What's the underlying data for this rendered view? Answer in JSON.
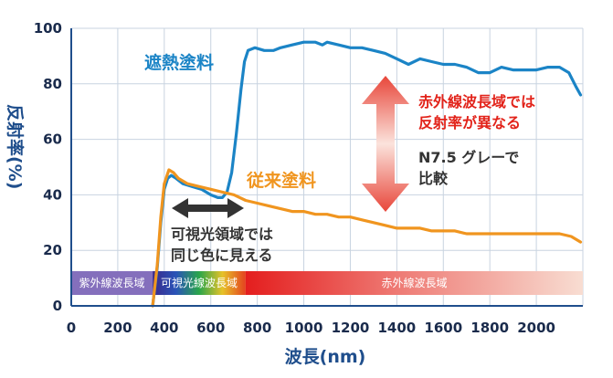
{
  "chart_data": {
    "type": "line",
    "xlabel": "波長(nm)",
    "ylabel": "反射率(%)",
    "xlim": [
      0,
      2200
    ],
    "ylim": [
      0,
      100
    ],
    "x_ticks": [
      "0",
      "200",
      "400",
      "600",
      "800",
      "1000",
      "1200",
      "1400",
      "1600",
      "1800",
      "2000"
    ],
    "y_ticks": [
      "0",
      "20",
      "40",
      "60",
      "80",
      "100"
    ],
    "grid": true,
    "colors": {
      "heat": "#1b84c6",
      "conventional": "#f0951f",
      "axis": "#1f4e8c",
      "grid": "#c8d3e0"
    },
    "series": [
      {
        "name": "遮熱塗料",
        "color": "#1b84c6",
        "points": [
          [
            350,
            0
          ],
          [
            370,
            14
          ],
          [
            385,
            30
          ],
          [
            400,
            42
          ],
          [
            415,
            46
          ],
          [
            430,
            47
          ],
          [
            450,
            46
          ],
          [
            480,
            44
          ],
          [
            520,
            43
          ],
          [
            560,
            42
          ],
          [
            600,
            40
          ],
          [
            630,
            39
          ],
          [
            650,
            39
          ],
          [
            670,
            41
          ],
          [
            690,
            48
          ],
          [
            710,
            62
          ],
          [
            730,
            78
          ],
          [
            745,
            88
          ],
          [
            760,
            92
          ],
          [
            790,
            93
          ],
          [
            830,
            92
          ],
          [
            870,
            92
          ],
          [
            900,
            93
          ],
          [
            950,
            94
          ],
          [
            1000,
            95
          ],
          [
            1050,
            95
          ],
          [
            1080,
            94
          ],
          [
            1100,
            95
          ],
          [
            1150,
            94
          ],
          [
            1200,
            93
          ],
          [
            1250,
            93
          ],
          [
            1300,
            92
          ],
          [
            1350,
            91
          ],
          [
            1400,
            89
          ],
          [
            1450,
            87
          ],
          [
            1500,
            89
          ],
          [
            1550,
            88
          ],
          [
            1600,
            87
          ],
          [
            1650,
            87
          ],
          [
            1700,
            86
          ],
          [
            1750,
            84
          ],
          [
            1800,
            84
          ],
          [
            1850,
            86
          ],
          [
            1900,
            85
          ],
          [
            1950,
            85
          ],
          [
            2000,
            85
          ],
          [
            2050,
            86
          ],
          [
            2100,
            86
          ],
          [
            2140,
            84
          ],
          [
            2170,
            79
          ],
          [
            2190,
            76
          ]
        ]
      },
      {
        "name": "従来塗料",
        "color": "#f0951f",
        "points": [
          [
            350,
            0
          ],
          [
            370,
            15
          ],
          [
            385,
            32
          ],
          [
            400,
            44
          ],
          [
            420,
            49
          ],
          [
            440,
            48
          ],
          [
            460,
            46
          ],
          [
            500,
            44
          ],
          [
            550,
            43
          ],
          [
            600,
            42
          ],
          [
            650,
            41
          ],
          [
            700,
            40
          ],
          [
            750,
            38
          ],
          [
            800,
            37
          ],
          [
            850,
            36
          ],
          [
            900,
            35
          ],
          [
            950,
            34
          ],
          [
            1000,
            34
          ],
          [
            1050,
            33
          ],
          [
            1100,
            33
          ],
          [
            1150,
            32
          ],
          [
            1200,
            32
          ],
          [
            1250,
            31
          ],
          [
            1300,
            30
          ],
          [
            1350,
            29
          ],
          [
            1400,
            28
          ],
          [
            1450,
            28
          ],
          [
            1500,
            28
          ],
          [
            1550,
            27
          ],
          [
            1600,
            27
          ],
          [
            1650,
            27
          ],
          [
            1700,
            26
          ],
          [
            1750,
            26
          ],
          [
            1800,
            26
          ],
          [
            1850,
            26
          ],
          [
            1900,
            26
          ],
          [
            1950,
            26
          ],
          [
            2000,
            26
          ],
          [
            2050,
            26
          ],
          [
            2100,
            26
          ],
          [
            2150,
            25
          ],
          [
            2190,
            23
          ]
        ]
      }
    ],
    "bands": [
      {
        "label": "紫外線波長域",
        "from": 0,
        "to": 350
      },
      {
        "label": "可視光線波長域",
        "from": 350,
        "to": 750
      },
      {
        "label": "赤外線波長域",
        "from": 750,
        "to": 2200
      }
    ],
    "annotations": {
      "series_label_heat": "遮熱塗料",
      "series_label_conventional": "従来塗料",
      "infrared_note_line1": "赤外線波長域では",
      "infrared_note_line2": "反射率が異なる",
      "sample_line1": "N7.5 グレーで",
      "sample_line2": "比較",
      "visible_note_line1": "可視光領域では",
      "visible_note_line2": "同じ色に見える"
    }
  }
}
